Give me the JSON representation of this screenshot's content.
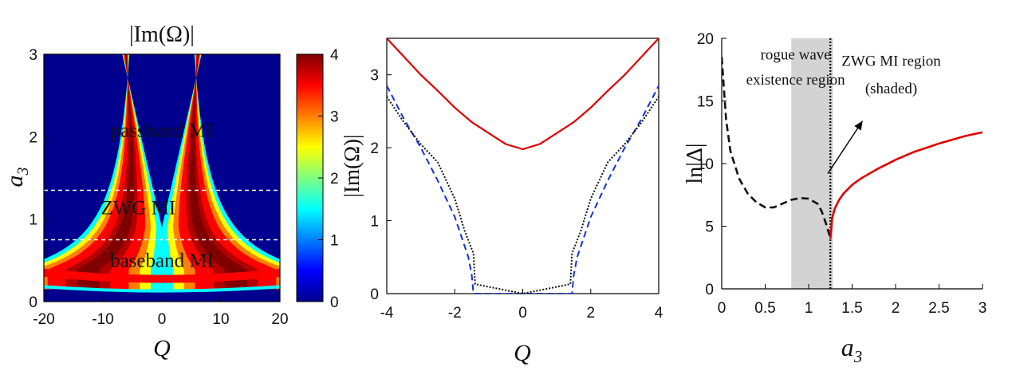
{
  "chart_data": [
    {
      "type": "heatmap",
      "title": "|Im(Ω)|",
      "xlabel": "Q",
      "ylabel": "a3",
      "xlim": [
        -20,
        20
      ],
      "ylim": [
        0,
        3
      ],
      "xticks": [
        "-20",
        "-10",
        "0",
        "10",
        "20"
      ],
      "yticks": [
        "0",
        "1",
        "2",
        "3"
      ],
      "colorbar": {
        "range": [
          0,
          4
        ],
        "ticks": [
          "0",
          "1",
          "2",
          "3",
          "4"
        ],
        "colormap": "jet"
      },
      "dashed_lines_y": [
        0.75,
        1.35
      ],
      "annotations": [
        {
          "text": "passband MI",
          "x": 0,
          "y": 2.0
        },
        {
          "text": "ZWG MI",
          "x": -4,
          "y": 1.06
        },
        {
          "text": "baseband MI",
          "x": 0,
          "y": 0.42
        }
      ]
    },
    {
      "type": "line",
      "xlabel": "Q",
      "ylabel": "|Im(Ω)|",
      "xlim": [
        -4,
        4
      ],
      "ylim": [
        0,
        3.5
      ],
      "xticks": [
        "-4",
        "-2",
        "0",
        "2",
        "4"
      ],
      "yticks": [
        "0",
        "1",
        "2",
        "3"
      ],
      "series": [
        {
          "style": "solid",
          "color": "#e00000",
          "x": [
            -4,
            -3.5,
            -3,
            -2.5,
            -2,
            -1.5,
            -1,
            -0.5,
            0,
            0.5,
            1,
            1.5,
            2,
            2.5,
            3,
            3.5,
            4
          ],
          "values": [
            3.5,
            3.25,
            3.0,
            2.78,
            2.55,
            2.35,
            2.2,
            2.05,
            1.98,
            2.05,
            2.2,
            2.35,
            2.55,
            2.78,
            3.0,
            3.25,
            3.5
          ]
        },
        {
          "style": "dashed",
          "color": "#1030e0",
          "x": [
            -4,
            -3.5,
            -3,
            -2.5,
            -2,
            -1.6,
            -1.5,
            -1.45,
            1.45,
            1.5,
            1.6,
            2,
            2.5,
            3,
            3.5,
            4
          ],
          "values": [
            2.85,
            2.4,
            2.0,
            1.55,
            1.05,
            0.5,
            0.25,
            0.0,
            0.0,
            0.25,
            0.5,
            1.05,
            1.55,
            2.0,
            2.4,
            2.85
          ]
        },
        {
          "style": "dotted",
          "color": "#111111",
          "x": [
            -4,
            -3.5,
            -3,
            -2.5,
            -2,
            -1.7,
            -1.45,
            -1.4,
            0,
            1.4,
            1.45,
            1.7,
            2,
            2.5,
            3,
            3.5,
            4
          ],
          "values": [
            2.7,
            2.35,
            2.05,
            1.8,
            1.3,
            0.85,
            0.55,
            0.13,
            0.0,
            0.13,
            0.55,
            0.85,
            1.3,
            1.8,
            2.05,
            2.35,
            2.7
          ]
        }
      ]
    },
    {
      "type": "line",
      "xlabel": "a3",
      "ylabel": "ln|Δ|",
      "xlim": [
        0,
        3
      ],
      "ylim": [
        0,
        20
      ],
      "xticks": [
        "0",
        "0.5",
        "1",
        "1.5",
        "2",
        "2.5",
        "3"
      ],
      "yticks": [
        "0",
        "5",
        "10",
        "15",
        "20"
      ],
      "shaded_region": [
        0.8,
        1.28
      ],
      "vertical_line_x": 1.25,
      "annotations": [
        {
          "text": "rogue wave",
          "x": 0.85,
          "y": 18.3
        },
        {
          "text": "existence region",
          "x": 0.85,
          "y": 16.3
        },
        {
          "text": "ZWG MI region",
          "x": 1.95,
          "y": 17.8
        },
        {
          "text": "(shaded)",
          "x": 1.95,
          "y": 15.6
        }
      ],
      "series": [
        {
          "style": "dashed",
          "color": "#111111",
          "x": [
            0,
            0.05,
            0.1,
            0.2,
            0.3,
            0.4,
            0.5,
            0.6,
            0.7,
            0.8,
            0.9,
            1.0,
            1.1,
            1.15,
            1.2,
            1.23,
            1.25
          ],
          "values": [
            18.5,
            13.5,
            11.0,
            8.8,
            7.6,
            6.9,
            6.5,
            6.5,
            6.8,
            7.1,
            7.25,
            7.2,
            6.8,
            6.2,
            5.2,
            4.5,
            4.0
          ]
        },
        {
          "style": "solid",
          "color": "#e00000",
          "x": [
            1.25,
            1.27,
            1.3,
            1.35,
            1.4,
            1.5,
            1.6,
            1.8,
            2.0,
            2.2,
            2.5,
            2.8,
            3.0
          ],
          "values": [
            4.0,
            5.6,
            6.4,
            7.1,
            7.6,
            8.3,
            8.8,
            9.6,
            10.3,
            10.9,
            11.6,
            12.2,
            12.5
          ]
        }
      ]
    }
  ]
}
